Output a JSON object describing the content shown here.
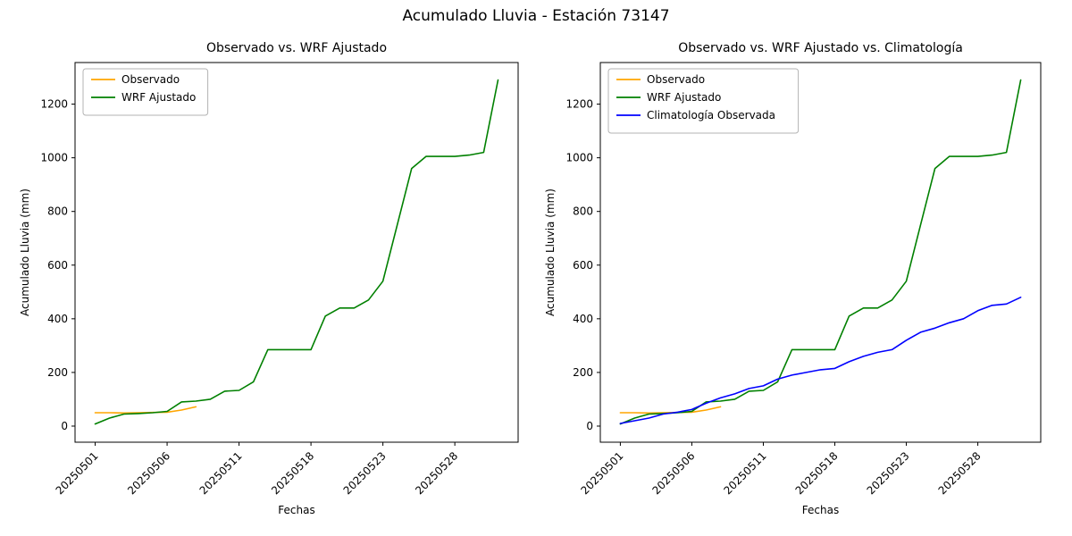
{
  "figure": {
    "title": "Acumulado Lluvia - Estación 73147",
    "background": "#ffffff"
  },
  "chart_data": [
    {
      "type": "line",
      "title": "Observado vs. WRF Ajustado",
      "xlabel": "Fechas",
      "ylabel": "Acumulado Lluvia (mm)",
      "grid": false,
      "legend_position": "upper left",
      "ylim": [
        -60,
        1355
      ],
      "y_ticks": [
        0,
        200,
        400,
        600,
        800,
        1000,
        1200
      ],
      "x": [
        "20250501",
        "20250502",
        "20250503",
        "20250504",
        "20250505",
        "20250506",
        "20250507",
        "20250508",
        "20250509",
        "20250510",
        "20250511",
        "20250513",
        "20250514",
        "20250515",
        "20250517",
        "20250518",
        "20250519",
        "20250520",
        "20250521",
        "20250522",
        "20250523",
        "20250524",
        "20250525",
        "20250526",
        "20250527",
        "20250528",
        "20250529",
        "20250530",
        "20250531"
      ],
      "x_tick_labels": [
        "20250501",
        "20250506",
        "20250511",
        "20250518",
        "20250523",
        "20250528"
      ],
      "x_tick_indices": [
        0,
        5,
        10,
        15,
        20,
        25
      ],
      "series": [
        {
          "name": "Observado",
          "color": "#ffa500",
          "values": [
            50,
            50,
            49,
            50,
            51,
            52,
            60,
            72
          ]
        },
        {
          "name": "WRF Ajustado",
          "color": "#008000",
          "values": [
            8,
            30,
            45,
            47,
            50,
            55,
            90,
            93,
            100,
            130,
            133,
            165,
            285,
            285,
            285,
            285,
            410,
            440,
            440,
            470,
            540,
            750,
            960,
            1005,
            1005,
            1005,
            1010,
            1020,
            1290
          ]
        }
      ]
    },
    {
      "type": "line",
      "title": "Observado vs. WRF Ajustado vs. Climatología",
      "xlabel": "Fechas",
      "ylabel": "Acumulado Lluvia (mm)",
      "grid": false,
      "legend_position": "upper left",
      "ylim": [
        -60,
        1355
      ],
      "y_ticks": [
        0,
        200,
        400,
        600,
        800,
        1000,
        1200
      ],
      "x": [
        "20250501",
        "20250502",
        "20250503",
        "20250504",
        "20250505",
        "20250506",
        "20250507",
        "20250508",
        "20250509",
        "20250510",
        "20250511",
        "20250513",
        "20250514",
        "20250515",
        "20250517",
        "20250518",
        "20250519",
        "20250520",
        "20250521",
        "20250522",
        "20250523",
        "20250524",
        "20250525",
        "20250526",
        "20250527",
        "20250528",
        "20250529",
        "20250530",
        "20250531"
      ],
      "x_tick_labels": [
        "20250501",
        "20250506",
        "20250511",
        "20250518",
        "20250523",
        "20250528"
      ],
      "x_tick_indices": [
        0,
        5,
        10,
        15,
        20,
        25
      ],
      "series": [
        {
          "name": "Observado",
          "color": "#ffa500",
          "values": [
            50,
            50,
            49,
            50,
            51,
            52,
            60,
            72
          ]
        },
        {
          "name": "WRF Ajustado",
          "color": "#008000",
          "values": [
            8,
            30,
            45,
            47,
            50,
            55,
            90,
            93,
            100,
            130,
            133,
            165,
            285,
            285,
            285,
            285,
            410,
            440,
            440,
            470,
            540,
            750,
            960,
            1005,
            1005,
            1005,
            1010,
            1020,
            1290
          ]
        },
        {
          "name": "Climatología Observada",
          "color": "#0000ff",
          "values": [
            10,
            20,
            30,
            45,
            52,
            62,
            85,
            105,
            120,
            140,
            150,
            175,
            190,
            200,
            210,
            215,
            240,
            260,
            275,
            285,
            320,
            350,
            365,
            385,
            400,
            430,
            450,
            455,
            480
          ]
        }
      ]
    }
  ]
}
